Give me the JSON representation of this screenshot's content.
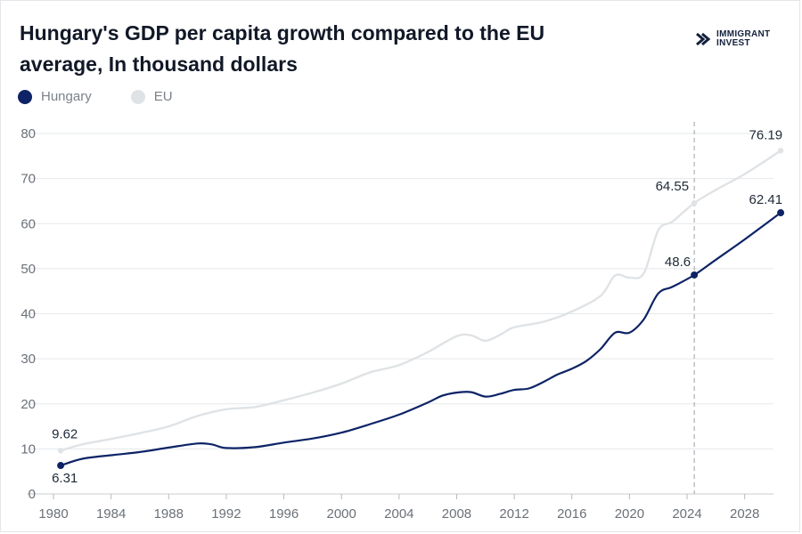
{
  "header": {
    "title": "Hungary's GDP per capita growth compared to the EU average, In thousand dollars",
    "brand_line1": "IMMIGRANT",
    "brand_line2": "INVEST"
  },
  "colors": {
    "hungary": "#0d2366",
    "eu": "#dfe3e6",
    "grid": "#e6e8eb",
    "marker_line": "#9aa0a6"
  },
  "chart_data": {
    "type": "line",
    "title": "Hungary's GDP per capita growth compared to the EU average, In thousand dollars",
    "xlabel": "",
    "ylabel": "",
    "xlim": [
      1980,
      2030
    ],
    "ylim": [
      0,
      80
    ],
    "yticks": [
      0,
      10,
      20,
      30,
      40,
      50,
      60,
      70,
      80
    ],
    "xticks": [
      1980,
      1984,
      1988,
      1992,
      1996,
      2000,
      2004,
      2008,
      2012,
      2016,
      2020,
      2024,
      2028
    ],
    "grid": true,
    "legend_position": "top-left",
    "reference_line_x": 2024.5,
    "series": [
      {
        "name": "Hungary",
        "color": "#0d2366",
        "points": [
          [
            1980.5,
            6.31
          ],
          [
            1982,
            7.8
          ],
          [
            1984,
            8.6
          ],
          [
            1986,
            9.3
          ],
          [
            1988,
            10.3
          ],
          [
            1990,
            11.2
          ],
          [
            1991,
            11.0
          ],
          [
            1992,
            10.2
          ],
          [
            1994,
            10.4
          ],
          [
            1996,
            11.4
          ],
          [
            1998,
            12.3
          ],
          [
            2000,
            13.6
          ],
          [
            2002,
            15.5
          ],
          [
            2004,
            17.6
          ],
          [
            2006,
            20.3
          ],
          [
            2007,
            21.8
          ],
          [
            2008,
            22.5
          ],
          [
            2009,
            22.6
          ],
          [
            2010,
            21.6
          ],
          [
            2011,
            22.2
          ],
          [
            2012,
            23.1
          ],
          [
            2013,
            23.4
          ],
          [
            2014,
            24.8
          ],
          [
            2015,
            26.5
          ],
          [
            2016,
            27.8
          ],
          [
            2017,
            29.5
          ],
          [
            2018,
            32.2
          ],
          [
            2019,
            35.8
          ],
          [
            2020,
            35.8
          ],
          [
            2021,
            38.8
          ],
          [
            2022,
            44.5
          ],
          [
            2023,
            46.0
          ],
          [
            2024.5,
            48.6
          ],
          [
            2026,
            52.0
          ],
          [
            2028,
            56.5
          ],
          [
            2030.5,
            62.41
          ]
        ],
        "labels": [
          {
            "x": 1980.5,
            "y": 6.31,
            "text": "6.31"
          },
          {
            "x": 2024.5,
            "y": 48.6,
            "text": "48.6"
          },
          {
            "x": 2030.5,
            "y": 62.41,
            "text": "62.41"
          }
        ]
      },
      {
        "name": "EU",
        "color": "#dfe3e6",
        "points": [
          [
            1980.5,
            9.62
          ],
          [
            1982,
            11.0
          ],
          [
            1984,
            12.2
          ],
          [
            1986,
            13.5
          ],
          [
            1988,
            15.0
          ],
          [
            1990,
            17.3
          ],
          [
            1992,
            18.8
          ],
          [
            1994,
            19.3
          ],
          [
            1996,
            20.8
          ],
          [
            1998,
            22.5
          ],
          [
            2000,
            24.5
          ],
          [
            2002,
            27.0
          ],
          [
            2004,
            28.6
          ],
          [
            2006,
            31.5
          ],
          [
            2008,
            35.0
          ],
          [
            2009,
            35.2
          ],
          [
            2010,
            34.0
          ],
          [
            2011,
            35.3
          ],
          [
            2012,
            37.0
          ],
          [
            2014,
            38.2
          ],
          [
            2016,
            40.5
          ],
          [
            2018,
            44.0
          ],
          [
            2019,
            48.5
          ],
          [
            2020,
            48.0
          ],
          [
            2021,
            49.0
          ],
          [
            2022,
            58.5
          ],
          [
            2023,
            60.5
          ],
          [
            2024.5,
            64.55
          ],
          [
            2026,
            67.5
          ],
          [
            2028,
            71.0
          ],
          [
            2030.5,
            76.19
          ]
        ],
        "labels": [
          {
            "x": 1980.5,
            "y": 9.62,
            "text": "9.62"
          },
          {
            "x": 2024.5,
            "y": 64.55,
            "text": "64.55"
          },
          {
            "x": 2030.5,
            "y": 76.19,
            "text": "76.19"
          }
        ]
      }
    ]
  }
}
